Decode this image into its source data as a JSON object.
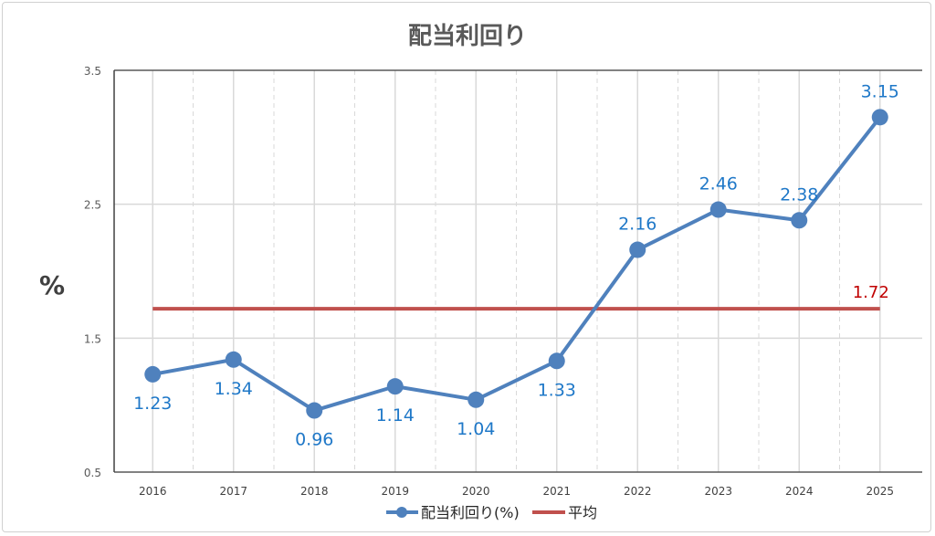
{
  "chart_data": {
    "type": "line",
    "title": "配当利回り",
    "xlabel": "",
    "ylabel": "%",
    "categories": [
      "2016",
      "2017",
      "2018",
      "2019",
      "2020",
      "2021",
      "2022",
      "2023",
      "2024",
      "2025"
    ],
    "series": [
      {
        "name": "配当利回り(%)",
        "color": "#4F81BD",
        "label_color": "#1F78C8",
        "values": [
          1.23,
          1.34,
          0.96,
          1.14,
          1.04,
          1.33,
          2.16,
          2.46,
          2.38,
          3.15
        ],
        "labels": [
          "1.23",
          "1.34",
          "0.96",
          "1.14",
          "1.04",
          "1.33",
          "2.16",
          "2.46",
          "2.38",
          "3.15"
        ]
      },
      {
        "name": "平均",
        "color": "#C0504D",
        "label_color": "#C00000",
        "value": 1.72,
        "label": "1.72"
      }
    ],
    "ylim": [
      0.5,
      3.5
    ],
    "yticks": [
      "0.5",
      "1.5",
      "2.5",
      "3.5"
    ],
    "grid": true,
    "legend": "bottom"
  }
}
